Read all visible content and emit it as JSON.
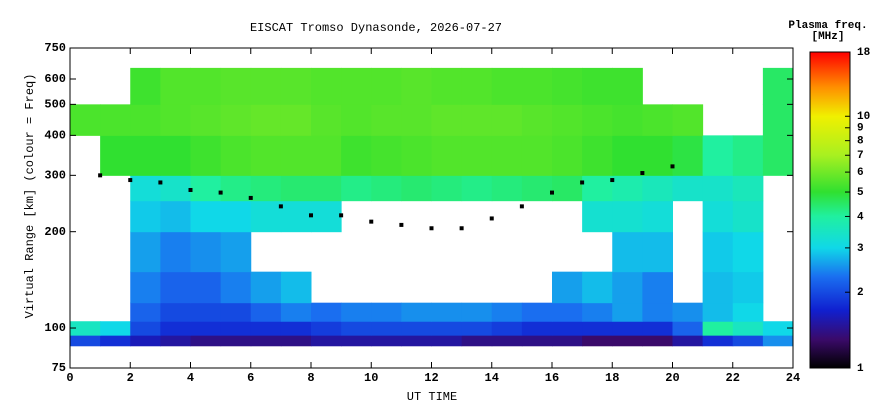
{
  "chart_data": {
    "type": "heatmap",
    "title": "EISCAT Tromso Dynasonde, 2026-07-27",
    "xlabel": "UT TIME",
    "ylabel": "Virtual Range [km] (colour = Freq)",
    "xlim": [
      0,
      24
    ],
    "xticks": [
      0,
      2,
      4,
      6,
      8,
      10,
      12,
      14,
      16,
      18,
      20,
      22,
      24
    ],
    "ylim": [
      75,
      750
    ],
    "yticks": [
      75,
      100,
      200,
      300,
      400,
      500,
      600,
      750
    ],
    "ylog": true,
    "x_bins": [
      0,
      1,
      2,
      3,
      4,
      5,
      6,
      7,
      8,
      9,
      10,
      11,
      12,
      13,
      14,
      15,
      16,
      17,
      18,
      19,
      20,
      21,
      22,
      23,
      24
    ],
    "y_bins": [
      88,
      95,
      105,
      120,
      150,
      200,
      250,
      300,
      400,
      500,
      650
    ],
    "z": [
      [
        2.0,
        1.8,
        1.6,
        1.5,
        1.4,
        1.4,
        1.4,
        1.4,
        1.5,
        1.5,
        1.5,
        1.5,
        1.5,
        1.4,
        1.4,
        1.4,
        1.4,
        1.3,
        1.3,
        1.3,
        1.5,
        1.8,
        2.0,
        2.5
      ],
      [
        3.5,
        3.0,
        2.0,
        1.8,
        1.8,
        1.8,
        1.8,
        1.8,
        1.9,
        2.0,
        2.0,
        2.0,
        2.0,
        2.0,
        1.9,
        1.8,
        1.8,
        1.8,
        1.8,
        1.8,
        2.2,
        4.0,
        3.5,
        3.0
      ],
      [
        null,
        null,
        2.2,
        2.0,
        2.0,
        2.0,
        2.2,
        2.4,
        2.3,
        2.4,
        2.4,
        2.5,
        2.5,
        2.5,
        2.4,
        2.3,
        2.3,
        2.4,
        2.6,
        2.4,
        2.5,
        2.8,
        3.0,
        null
      ],
      [
        null,
        null,
        2.4,
        2.2,
        2.2,
        2.4,
        2.6,
        2.8,
        null,
        null,
        null,
        null,
        null,
        null,
        null,
        null,
        2.6,
        2.8,
        2.6,
        2.4,
        null,
        2.8,
        2.9,
        null
      ],
      [
        null,
        null,
        2.6,
        2.4,
        2.5,
        2.6,
        null,
        null,
        null,
        null,
        null,
        null,
        null,
        null,
        null,
        null,
        null,
        null,
        2.8,
        2.8,
        null,
        2.9,
        3.0,
        null
      ],
      [
        null,
        null,
        2.9,
        2.8,
        3.0,
        3.0,
        3.2,
        3.2,
        3.2,
        null,
        null,
        null,
        null,
        null,
        null,
        null,
        null,
        3.3,
        3.3,
        3.2,
        null,
        3.2,
        3.4,
        null
      ],
      [
        null,
        null,
        3.2,
        3.4,
        4.0,
        4.2,
        4.3,
        4.4,
        4.4,
        4.2,
        4.3,
        4.4,
        4.3,
        4.2,
        4.3,
        4.4,
        4.5,
        4.0,
        3.8,
        3.6,
        3.4,
        3.4,
        3.6,
        null
      ],
      [
        null,
        5.0,
        5.0,
        5.0,
        5.2,
        5.4,
        5.5,
        5.5,
        5.5,
        5.2,
        5.3,
        5.4,
        5.5,
        5.5,
        5.5,
        5.5,
        5.4,
        5.2,
        5.0,
        5.0,
        4.8,
        4.0,
        4.2,
        4.5
      ],
      [
        5.4,
        5.4,
        5.4,
        5.5,
        5.6,
        5.7,
        5.8,
        5.8,
        5.6,
        5.5,
        5.6,
        5.6,
        5.7,
        5.7,
        5.7,
        5.6,
        5.5,
        5.4,
        5.3,
        5.4,
        5.5,
        null,
        null,
        4.5
      ],
      [
        null,
        null,
        5.2,
        5.5,
        5.5,
        5.6,
        5.6,
        5.6,
        5.5,
        5.5,
        5.5,
        5.6,
        5.5,
        5.5,
        5.4,
        5.4,
        5.3,
        5.2,
        5.2,
        null,
        null,
        null,
        null,
        4.5
      ]
    ],
    "trace": {
      "color": "#000000",
      "x": [
        1,
        2,
        3,
        4,
        5,
        6,
        7,
        8,
        9,
        10,
        11,
        12,
        13,
        14,
        15,
        16,
        17,
        18,
        19,
        20
      ],
      "values": [
        300,
        290,
        285,
        270,
        265,
        255,
        240,
        225,
        225,
        215,
        210,
        205,
        205,
        220,
        240,
        265,
        285,
        290,
        305,
        320
      ]
    },
    "colorbar_title": "Plasma freq.",
    "colorbar_unit": "[MHz]",
    "clim": [
      1,
      18
    ],
    "clog": true,
    "cticks": [
      1,
      2,
      3,
      4,
      5,
      6,
      7,
      8,
      9,
      10,
      18
    ],
    "colorscale": [
      [
        1,
        "#000000"
      ],
      [
        1.3,
        "#3a0a6a"
      ],
      [
        1.7,
        "#1020d0"
      ],
      [
        2.3,
        "#1a6ef0"
      ],
      [
        3,
        "#10d8e8"
      ],
      [
        4,
        "#20f0a0"
      ],
      [
        5,
        "#30e030"
      ],
      [
        7,
        "#a8f020"
      ],
      [
        10,
        "#f0f000"
      ],
      [
        13,
        "#ff9000"
      ],
      [
        18,
        "#ff0000"
      ]
    ]
  }
}
